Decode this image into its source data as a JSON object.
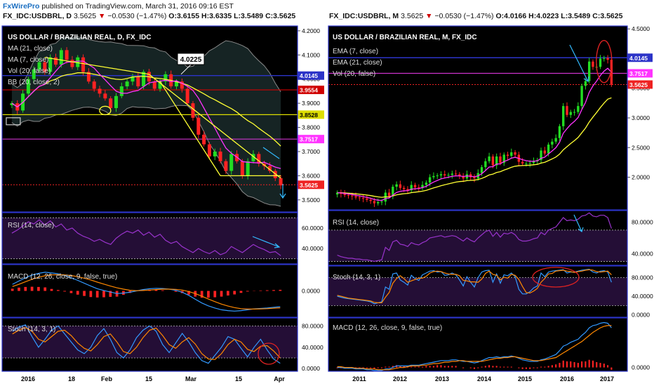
{
  "header_left": {
    "brand": "FxWirePro",
    "published": "published on TradingView.com, March 31, 2016 09:16 EST",
    "symbol": "FX_IDC:USDBRL, D",
    "last": "3.5625",
    "arrow": "▼",
    "change": "−0.0530 (−1.47%)",
    "o": "O:3.6155",
    "h": "H:3.6335",
    "l": "L:3.5489",
    "c": "C:3.5625"
  },
  "header_right": {
    "symbol": "FX_IDC:USDBRL, M",
    "last": "3.5625",
    "arrow": "▼",
    "change": "−0.0530 (−1.47%)",
    "o": "O:4.0166",
    "h": "H:4.0223",
    "l": "L:3.5489",
    "c": "C:3.5625"
  },
  "colors": {
    "bg": "#000000",
    "border": "#2c34c8",
    "axis_bg": "#ffffff",
    "up": "#22dd22",
    "down": "#ff2222",
    "ma21": "#ffff33",
    "ma7": "#ff33ff",
    "bb": "#8a8a8a",
    "rsi": "#9933cc",
    "macd": "#3399ff",
    "signal": "#ff8800",
    "annot": "#33bbff"
  },
  "chart_data": [
    {
      "type": "candlestick",
      "id": "daily_price",
      "title": "US DOLLAR / BRAZILIAN REAL, D, FX_IDC",
      "legend": [
        "MA (21, close)",
        "MA (7, close)",
        "Vol (20, false)",
        "BB (20, close, 2)"
      ],
      "ylim": [
        3.45,
        4.22
      ],
      "yticks": [
        "4.2000",
        "4.1000",
        "4.0000",
        "3.9000",
        "3.8000",
        "3.7000",
        "3.6000",
        "3.5000"
      ],
      "xticks": [
        "2016",
        "18",
        "Feb",
        "15",
        "Mar",
        "15",
        "Apr"
      ],
      "closes": [
        3.9,
        3.87,
        3.94,
        4.0,
        4.04,
        4.07,
        4.03,
        4.09,
        4.06,
        4.12,
        4.08,
        4.05,
        4.09,
        4.03,
        3.99,
        3.96,
        3.94,
        3.92,
        3.88,
        3.93,
        3.97,
        3.99,
        4.01,
        3.97,
        4.03,
        3.99,
        3.96,
        3.99,
        4.02,
        3.97,
        3.99,
        3.96,
        3.9,
        3.84,
        3.77,
        3.73,
        3.68,
        3.7,
        3.66,
        3.62,
        3.69,
        3.66,
        3.6,
        3.66,
        3.69,
        3.65,
        3.64,
        3.62,
        3.59,
        3.56
      ],
      "price_labels": [
        {
          "value": "4.0145",
          "color": "#2c34c8"
        },
        {
          "value": "3.9554",
          "color": "#d00000"
        },
        {
          "value": "3.8528",
          "color": "#dddd00"
        },
        {
          "value": "3.7517",
          "color": "#ff33ff"
        },
        {
          "value": "3.5625",
          "color": "#ee2222"
        }
      ],
      "annotations": [
        "4.0225"
      ]
    },
    {
      "type": "line",
      "id": "daily_rsi",
      "legend": "RSI (14, close)",
      "yticks": [
        "60.0000",
        "40.0000"
      ],
      "ylim": [
        25,
        75
      ],
      "values": [
        55,
        58,
        62,
        66,
        64,
        68,
        63,
        67,
        61,
        64,
        58,
        60,
        55,
        52,
        50,
        47,
        49,
        46,
        44,
        50,
        54,
        57,
        55,
        58,
        53,
        56,
        51,
        54,
        48,
        45,
        47,
        42,
        39,
        36,
        40,
        37,
        35,
        38,
        34,
        36,
        42,
        39,
        36,
        40,
        44,
        41,
        39,
        36,
        37,
        33
      ]
    },
    {
      "type": "line",
      "id": "daily_macd",
      "legend": "MACD (12, 26, close, 9, false, true)",
      "yticks": [
        "0.0000"
      ],
      "ylim": [
        -0.12,
        0.12
      ],
      "macd": [
        0.03,
        0.045,
        0.06,
        0.072,
        0.08,
        0.085,
        0.082,
        0.078,
        0.07,
        0.06,
        0.048,
        0.035,
        0.022,
        0.01,
        0.002,
        -0.005,
        -0.012,
        -0.01,
        -0.006,
        0.0,
        0.006,
        0.01,
        0.012,
        0.011,
        0.008,
        0.003,
        -0.006,
        -0.02,
        -0.038,
        -0.055,
        -0.068,
        -0.078,
        -0.086,
        -0.09,
        -0.092,
        -0.09,
        -0.086,
        -0.082,
        -0.08,
        -0.078,
        -0.075,
        -0.072
      ],
      "signal": [
        0.02,
        0.03,
        0.042,
        0.053,
        0.062,
        0.069,
        0.073,
        0.074,
        0.073,
        0.07,
        0.065,
        0.058,
        0.05,
        0.04,
        0.031,
        0.022,
        0.014,
        0.008,
        0.003,
        0.001,
        0.002,
        0.004,
        0.006,
        0.008,
        0.008,
        0.007,
        0.004,
        -0.003,
        -0.012,
        -0.024,
        -0.037,
        -0.049,
        -0.06,
        -0.069,
        -0.076,
        -0.081,
        -0.083,
        -0.083,
        -0.082,
        -0.081,
        -0.079,
        -0.077
      ],
      "histogram": [
        0.01,
        0.015,
        0.018,
        0.019,
        0.018,
        0.016,
        0.009,
        0.004,
        -0.003,
        -0.01,
        -0.017,
        -0.023,
        -0.028,
        -0.03,
        -0.029,
        -0.027,
        -0.026,
        -0.018,
        -0.009,
        -0.001,
        0.004,
        0.006,
        0.006,
        0.003,
        0.0,
        -0.004,
        -0.01,
        -0.017,
        -0.026,
        -0.031,
        -0.031,
        -0.029,
        -0.026,
        -0.021,
        -0.016,
        -0.009,
        -0.003,
        0.001,
        0.002,
        0.003,
        0.004,
        0.005
      ]
    },
    {
      "type": "line",
      "id": "daily_stoch",
      "legend": "Stoch (14, 3, 1)",
      "yticks": [
        "80.0000",
        "40.0000",
        "0.0000"
      ],
      "ylim": [
        -5,
        95
      ],
      "k": [
        70,
        78,
        82,
        60,
        40,
        55,
        72,
        80,
        65,
        50,
        35,
        28,
        40,
        62,
        75,
        55,
        30,
        20,
        35,
        58,
        72,
        80,
        70,
        45,
        30,
        48,
        66,
        50,
        30,
        15,
        10,
        25,
        40,
        60,
        55,
        38,
        22,
        40,
        55,
        35,
        18,
        10
      ],
      "d": [
        65,
        72,
        77,
        70,
        55,
        50,
        60,
        70,
        72,
        62,
        48,
        38,
        33,
        45,
        60,
        65,
        50,
        32,
        28,
        40,
        58,
        72,
        76,
        62,
        45,
        38,
        50,
        58,
        46,
        28,
        18,
        17,
        28,
        45,
        55,
        50,
        36,
        32,
        42,
        43,
        33,
        20
      ]
    },
    {
      "type": "candlestick",
      "id": "monthly_price",
      "title": "US DOLLAR / BRAZILIAN REAL, M, FX_IDC",
      "legend": [
        "EMA (7, close)",
        "EMA (21, close)",
        "Vol (20, false)"
      ],
      "ylim": [
        1.45,
        4.55
      ],
      "yticks": [
        "4.5000",
        "4.0000",
        "3.5000",
        "3.0000",
        "2.5000",
        "2.0000"
      ],
      "xticks": [
        "2011",
        "2012",
        "2013",
        "2014",
        "2015",
        "2016",
        "2017"
      ],
      "closes": [
        1.74,
        1.72,
        1.7,
        1.69,
        1.68,
        1.66,
        1.65,
        1.64,
        1.62,
        1.6,
        1.56,
        1.58,
        1.59,
        1.74,
        1.68,
        1.84,
        1.88,
        1.82,
        1.8,
        1.78,
        1.87,
        1.83,
        1.82,
        1.87,
        1.91,
        2.0,
        2.02,
        2.03,
        2.05,
        2.03,
        2.04,
        2.06,
        2.05,
        2.02,
        1.98,
        2.05,
        2.0,
        1.98,
        2.07,
        2.17,
        2.27,
        2.35,
        2.2,
        2.35,
        2.24,
        2.38,
        2.36,
        2.42,
        2.38,
        2.26,
        2.23,
        2.23,
        2.24,
        2.27,
        2.29,
        2.45,
        2.4,
        2.55,
        2.6,
        2.66,
        2.86,
        3.2,
        3.05,
        3.1,
        3.1,
        3.2,
        3.54,
        3.62,
        3.95,
        3.86,
        3.86,
        4.0,
        4.01,
        3.98,
        3.56
      ],
      "price_labels": [
        {
          "value": "4.0145",
          "color": "#2c34c8"
        },
        {
          "value": "3.7517",
          "color": "#ff33ff"
        },
        {
          "value": "3.5625",
          "color": "#ee2222"
        }
      ]
    },
    {
      "type": "line",
      "id": "monthly_rsi",
      "legend": "RSI (14, close)",
      "yticks": [
        "80.0000",
        "40.0000"
      ],
      "ylim": [
        25,
        95
      ],
      "values": [
        38,
        36,
        35,
        34,
        34,
        33,
        33,
        32,
        32,
        31,
        30,
        31,
        32,
        48,
        44,
        55,
        57,
        52,
        51,
        49,
        54,
        52,
        51,
        54,
        56,
        60,
        61,
        62,
        63,
        61,
        62,
        63,
        62,
        59,
        56,
        60,
        57,
        55,
        60,
        64,
        68,
        70,
        62,
        67,
        61,
        66,
        65,
        67,
        64,
        58,
        56,
        56,
        57,
        59,
        60,
        67,
        64,
        70,
        72,
        74,
        80,
        86,
        82,
        83,
        82,
        84,
        88,
        89,
        92,
        88,
        87,
        89,
        89,
        86,
        72
      ]
    },
    {
      "type": "line",
      "id": "monthly_stoch",
      "legend": "Stoch (14, 3, 1)",
      "yticks": [
        "80.0000",
        "40.0000",
        "0.0000"
      ],
      "ylim": [
        -5,
        105
      ],
      "k": [
        40,
        38,
        36,
        35,
        34,
        33,
        32,
        31,
        30,
        28,
        24,
        26,
        28,
        60,
        55,
        88,
        90,
        75,
        70,
        64,
        85,
        78,
        74,
        86,
        90,
        94,
        95,
        92,
        93,
        85,
        86,
        90,
        86,
        75,
        62,
        82,
        70,
        60,
        80,
        92,
        95,
        96,
        70,
        88,
        68,
        86,
        84,
        90,
        82,
        55,
        45,
        45,
        50,
        58,
        62,
        90,
        82,
        92,
        94,
        95,
        96,
        97,
        90,
        92,
        92,
        94,
        96,
        97,
        98,
        92,
        90,
        94,
        95,
        92,
        70
      ],
      "d": [
        42,
        40,
        38,
        36,
        35,
        34,
        33,
        32,
        31,
        30,
        27,
        26,
        26,
        38,
        48,
        68,
        78,
        84,
        78,
        70,
        73,
        76,
        79,
        79,
        83,
        90,
        93,
        94,
        93,
        90,
        88,
        87,
        87,
        84,
        74,
        73,
        71,
        71,
        70,
        77,
        89,
        94,
        87,
        85,
        75,
        81,
        79,
        87,
        85,
        76,
        61,
        48,
        47,
        51,
        57,
        70,
        78,
        88,
        89,
        94,
        95,
        96,
        94,
        93,
        91,
        93,
        94,
        96,
        97,
        96,
        93,
        92,
        93,
        94,
        86
      ]
    },
    {
      "type": "line",
      "id": "monthly_macd",
      "legend": "MACD (12, 26, close, 9, false, true)",
      "yticks": [
        "0.0000"
      ],
      "ylim": [
        -0.05,
        0.65
      ],
      "macd": [
        0.0,
        0.0,
        -0.01,
        -0.01,
        -0.01,
        -0.02,
        -0.02,
        -0.02,
        -0.03,
        -0.03,
        -0.04,
        -0.04,
        -0.04,
        -0.02,
        -0.02,
        0.0,
        0.02,
        0.02,
        0.02,
        0.02,
        0.03,
        0.03,
        0.03,
        0.04,
        0.05,
        0.06,
        0.07,
        0.08,
        0.09,
        0.09,
        0.09,
        0.1,
        0.1,
        0.09,
        0.08,
        0.08,
        0.07,
        0.06,
        0.07,
        0.09,
        0.11,
        0.13,
        0.13,
        0.14,
        0.13,
        0.14,
        0.14,
        0.15,
        0.14,
        0.12,
        0.1,
        0.09,
        0.08,
        0.08,
        0.08,
        0.1,
        0.11,
        0.13,
        0.15,
        0.17,
        0.22,
        0.28,
        0.3,
        0.33,
        0.35,
        0.37,
        0.42,
        0.46,
        0.52,
        0.55,
        0.56,
        0.58,
        0.59,
        0.58,
        0.52
      ],
      "signal": [
        0.01,
        0.01,
        0.0,
        0.0,
        0.0,
        -0.01,
        -0.01,
        -0.01,
        -0.02,
        -0.02,
        -0.02,
        -0.03,
        -0.03,
        -0.03,
        -0.03,
        -0.02,
        -0.01,
        0.0,
        0.0,
        0.01,
        0.02,
        0.02,
        0.02,
        0.03,
        0.03,
        0.04,
        0.05,
        0.05,
        0.06,
        0.07,
        0.07,
        0.08,
        0.08,
        0.09,
        0.09,
        0.08,
        0.08,
        0.08,
        0.08,
        0.08,
        0.09,
        0.1,
        0.11,
        0.12,
        0.12,
        0.13,
        0.13,
        0.14,
        0.14,
        0.13,
        0.12,
        0.11,
        0.1,
        0.09,
        0.09,
        0.09,
        0.1,
        0.11,
        0.12,
        0.13,
        0.16,
        0.19,
        0.22,
        0.25,
        0.28,
        0.31,
        0.34,
        0.38,
        0.42,
        0.46,
        0.49,
        0.52,
        0.54,
        0.55,
        0.55
      ],
      "histogram": [
        -0.01,
        -0.01,
        -0.01,
        -0.01,
        -0.01,
        -0.01,
        -0.01,
        -0.01,
        -0.01,
        -0.01,
        -0.02,
        -0.01,
        -0.01,
        0.01,
        0.01,
        0.02,
        0.03,
        0.02,
        0.02,
        0.01,
        0.01,
        0.01,
        0.01,
        0.01,
        0.02,
        0.02,
        0.02,
        0.03,
        0.03,
        0.02,
        0.02,
        0.02,
        0.02,
        0.0,
        -0.01,
        0.0,
        -0.01,
        -0.02,
        -0.01,
        0.01,
        0.02,
        0.03,
        0.02,
        0.02,
        0.01,
        0.01,
        0.01,
        0.01,
        0.0,
        -0.01,
        -0.02,
        -0.02,
        -0.02,
        -0.01,
        -0.01,
        0.01,
        0.01,
        0.02,
        0.03,
        0.04,
        0.06,
        0.09,
        0.08,
        0.08,
        0.07,
        0.06,
        0.08,
        0.08,
        0.1,
        0.09,
        0.07,
        0.06,
        0.05,
        0.03,
        -0.03
      ]
    }
  ]
}
